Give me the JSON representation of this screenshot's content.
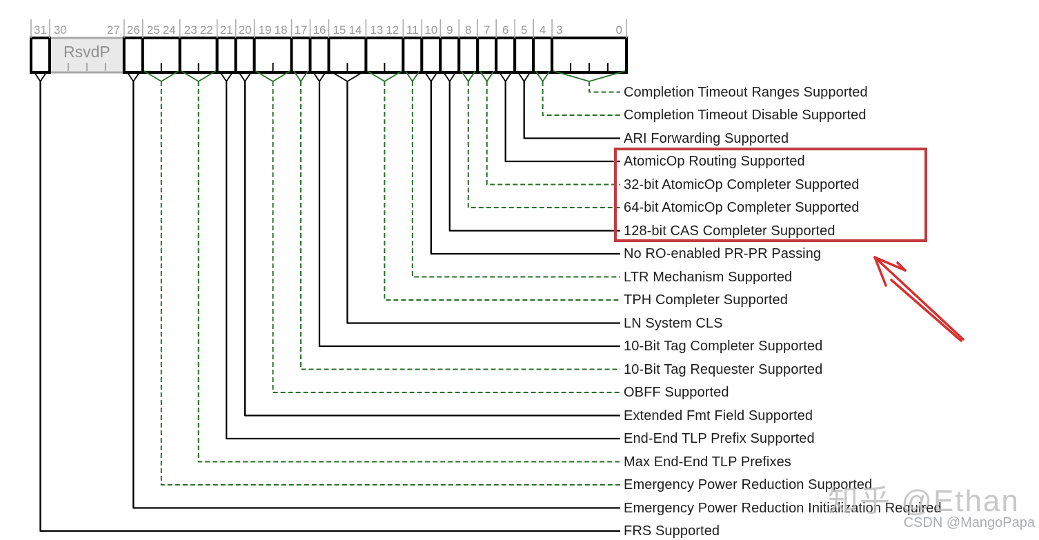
{
  "register": {
    "description": "32-bit register bit-field diagram",
    "bit_width": 32,
    "fields": [
      {
        "msb": 31,
        "lsb": 31,
        "text": "",
        "reserved": false
      },
      {
        "msb": 30,
        "lsb": 27,
        "text": "RsvdP",
        "reserved": true
      },
      {
        "msb": 26,
        "lsb": 26,
        "text": "",
        "reserved": false
      },
      {
        "msb": 25,
        "lsb": 24,
        "text": "",
        "reserved": false
      },
      {
        "msb": 23,
        "lsb": 22,
        "text": "",
        "reserved": false
      },
      {
        "msb": 21,
        "lsb": 21,
        "text": "",
        "reserved": false
      },
      {
        "msb": 20,
        "lsb": 20,
        "text": "",
        "reserved": false
      },
      {
        "msb": 19,
        "lsb": 18,
        "text": "",
        "reserved": false
      },
      {
        "msb": 17,
        "lsb": 17,
        "text": "",
        "reserved": false
      },
      {
        "msb": 16,
        "lsb": 16,
        "text": "",
        "reserved": false
      },
      {
        "msb": 15,
        "lsb": 14,
        "text": "",
        "reserved": false
      },
      {
        "msb": 13,
        "lsb": 12,
        "text": "",
        "reserved": false
      },
      {
        "msb": 11,
        "lsb": 11,
        "text": "",
        "reserved": false
      },
      {
        "msb": 10,
        "lsb": 10,
        "text": "",
        "reserved": false
      },
      {
        "msb": 9,
        "lsb": 9,
        "text": "",
        "reserved": false
      },
      {
        "msb": 8,
        "lsb": 8,
        "text": "",
        "reserved": false
      },
      {
        "msb": 7,
        "lsb": 7,
        "text": "",
        "reserved": false
      },
      {
        "msb": 6,
        "lsb": 6,
        "text": "",
        "reserved": false
      },
      {
        "msb": 5,
        "lsb": 5,
        "text": "",
        "reserved": false
      },
      {
        "msb": 4,
        "lsb": 4,
        "text": "",
        "reserved": false
      },
      {
        "msb": 3,
        "lsb": 0,
        "text": "",
        "reserved": false
      }
    ]
  },
  "callouts": [
    {
      "label": "Completion Timeout Ranges Supported",
      "msb": 3,
      "lsb": 0,
      "line": "dashed-green",
      "highlighted": false
    },
    {
      "label": "Completion Timeout Disable Supported",
      "msb": 4,
      "lsb": 4,
      "line": "dashed-green",
      "highlighted": false
    },
    {
      "label": "ARI Forwarding Supported",
      "msb": 5,
      "lsb": 5,
      "line": "solid-black",
      "highlighted": false
    },
    {
      "label": "AtomicOp Routing Supported",
      "msb": 6,
      "lsb": 6,
      "line": "solid-black",
      "highlighted": true
    },
    {
      "label": "32-bit AtomicOp Completer Supported",
      "msb": 7,
      "lsb": 7,
      "line": "dashed-green",
      "highlighted": true
    },
    {
      "label": "64-bit AtomicOp Completer Supported",
      "msb": 8,
      "lsb": 8,
      "line": "dashed-green",
      "highlighted": true
    },
    {
      "label": "128-bit CAS Completer Supported",
      "msb": 9,
      "lsb": 9,
      "line": "solid-black",
      "highlighted": true
    },
    {
      "label": "No RO-enabled PR-PR Passing",
      "msb": 10,
      "lsb": 10,
      "line": "solid-black",
      "highlighted": false
    },
    {
      "label": "LTR Mechanism Supported",
      "msb": 11,
      "lsb": 11,
      "line": "dashed-green",
      "highlighted": false
    },
    {
      "label": "TPH Completer Supported",
      "msb": 13,
      "lsb": 12,
      "line": "dashed-green",
      "highlighted": false
    },
    {
      "label": "LN System CLS",
      "msb": 15,
      "lsb": 14,
      "line": "solid-black",
      "highlighted": false
    },
    {
      "label": "10-Bit Tag Completer Supported",
      "msb": 16,
      "lsb": 16,
      "line": "solid-black",
      "highlighted": false
    },
    {
      "label": "10-Bit Tag Requester Supported",
      "msb": 17,
      "lsb": 17,
      "line": "dashed-green",
      "highlighted": false
    },
    {
      "label": "OBFF Supported",
      "msb": 19,
      "lsb": 18,
      "line": "dashed-green",
      "highlighted": false
    },
    {
      "label": "Extended Fmt Field Supported",
      "msb": 20,
      "lsb": 20,
      "line": "solid-black",
      "highlighted": false
    },
    {
      "label": "End-End TLP Prefix Supported",
      "msb": 21,
      "lsb": 21,
      "line": "solid-black",
      "highlighted": false
    },
    {
      "label": "Max End-End TLP Prefixes",
      "msb": 23,
      "lsb": 22,
      "line": "dashed-green",
      "highlighted": false
    },
    {
      "label": "Emergency Power Reduction Supported",
      "msb": 25,
      "lsb": 24,
      "line": "dashed-green",
      "highlighted": false
    },
    {
      "label": "Emergency Power Reduction Initialization Required",
      "msb": 26,
      "lsb": 26,
      "line": "solid-black",
      "highlighted": false
    },
    {
      "label": "FRS Supported",
      "msb": 31,
      "lsb": 31,
      "line": "solid-black",
      "highlighted": false
    }
  ],
  "highlight_box": {
    "contains_labels": [
      "AtomicOp Routing Supported",
      "32-bit AtomicOp Completer Supported",
      "64-bit AtomicOp Completer Supported",
      "128-bit CAS Completer Supported"
    ]
  },
  "annotation_arrow": {
    "points_at": "highlight-box",
    "direction": "up-left"
  },
  "watermarks": [
    {
      "text": "知乎 @Ethan"
    },
    {
      "text": "CSDN @MangoPapa"
    }
  ],
  "colors": {
    "line_black": "#000000",
    "callout_green": "#276f27",
    "highlight_red": "#c23b3e",
    "arrow_red": "#d92f2f",
    "reserved_fill": "#e9e9e9",
    "reserved_border": "#a8a8a8",
    "reserved_text": "#8f8f8f",
    "bit_number_gray": "#999999",
    "label_text": "#1d1d1d"
  }
}
